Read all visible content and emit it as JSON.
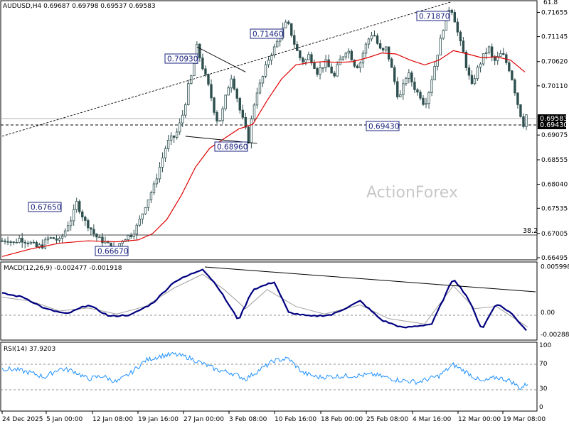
{
  "header": {
    "main": "AUDUSD,H4  0.69687 0.69798 0.69537 0.69583",
    "macd": "MACD(12,26,9) -0.002477 -0.001918",
    "rsi": "RSI(14) 37.9203",
    "top_right": "61.8"
  },
  "watermark": "ActionForex",
  "colors": {
    "candle": "#2f4f4f",
    "ma": "#e00000",
    "macd_line": "#000080",
    "macd_signal": "#a0a0a0",
    "rsi": "#1e90ff",
    "trend": "#000000",
    "box_border": "#1a237e"
  },
  "chart_data": [
    {
      "type": "candlestick",
      "symbol": "AUDUSD",
      "timeframe": "H4",
      "ylim": [
        0.6645,
        0.719
      ],
      "y_ticks": [
        "0.71655",
        "0.71145",
        "0.70620",
        "0.70110",
        "0.69583",
        "0.69430",
        "0.69075",
        "0.68555",
        "0.68040",
        "0.67535",
        "0.67005",
        "0.66495"
      ],
      "x_ticks": [
        "24 Dec 2025",
        "5 Jan 00:00",
        "12 Jan 08:00",
        "19 Jan 16:00",
        "27 Jan 00:00",
        "3 Feb 08:00",
        "10 Feb 16:00",
        "18 Feb 00:00",
        "25 Feb 08:00",
        "4 Mar 16:00",
        "12 Mar 00:00",
        "19 Mar 08:00"
      ],
      "last_price": 0.69583,
      "last_price_label": "0.69583",
      "support_level": 0.6943,
      "support_label": "0.69430",
      "fib_level": 0.67005,
      "fib_label": "38.2",
      "annotations": [
        {
          "text": "0.71870",
          "x": "9 Mar",
          "value": 0.7187
        },
        {
          "text": "0.71460",
          "x": "10 Feb",
          "value": 0.7146
        },
        {
          "text": "0.70930",
          "x": "28 Jan",
          "value": 0.7093
        },
        {
          "text": "0.68960",
          "x": "2 Feb",
          "value": 0.6896
        },
        {
          "text": "0.67650",
          "x": "8 Jan",
          "value": 0.6765
        },
        {
          "text": "0.66670",
          "x": "20 Jan",
          "value": 0.6667
        },
        {
          "text": "0.69430",
          "x": "3 Mar",
          "value": 0.6943
        }
      ],
      "close_path": [
        [
          0,
          0.6685
        ],
        [
          4,
          0.6688
        ],
        [
          8,
          0.668
        ],
        [
          12,
          0.669
        ],
        [
          16,
          0.6685
        ],
        [
          20,
          0.668
        ],
        [
          24,
          0.6672
        ],
        [
          28,
          0.6675
        ],
        [
          32,
          0.669
        ],
        [
          36,
          0.669
        ],
        [
          40,
          0.6685
        ],
        [
          43,
          0.67
        ],
        [
          46,
          0.672
        ],
        [
          49,
          0.6735
        ],
        [
          52,
          0.6765
        ],
        [
          55,
          0.6745
        ],
        [
          58,
          0.6725
        ],
        [
          61,
          0.6715
        ],
        [
          64,
          0.67
        ],
        [
          67,
          0.669
        ],
        [
          70,
          0.6685
        ],
        [
          73,
          0.668
        ],
        [
          76,
          0.667
        ],
        [
          79,
          0.6667
        ],
        [
          82,
          0.668
        ],
        [
          85,
          0.669
        ],
        [
          88,
          0.6695
        ],
        [
          91,
          0.67
        ],
        [
          94,
          0.6715
        ],
        [
          97,
          0.6735
        ],
        [
          100,
          0.676
        ],
        [
          103,
          0.678
        ],
        [
          106,
          0.68
        ],
        [
          109,
          0.683
        ],
        [
          112,
          0.686
        ],
        [
          115,
          0.689
        ],
        [
          118,
          0.69
        ],
        [
          121,
          0.6905
        ],
        [
          124,
          0.693
        ],
        [
          127,
          0.696
        ],
        [
          130,
          0.701
        ],
        [
          133,
          0.704
        ],
        [
          136,
          0.7093
        ],
        [
          139,
          0.706
        ],
        [
          142,
          0.703
        ],
        [
          145,
          0.7
        ],
        [
          148,
          0.696
        ],
        [
          151,
          0.693
        ],
        [
          154,
          0.696
        ],
        [
          157,
          0.7
        ],
        [
          160,
          0.703
        ],
        [
          163,
          0.7
        ],
        [
          166,
          0.696
        ],
        [
          169,
          0.693
        ],
        [
          172,
          0.6896
        ],
        [
          175,
          0.696
        ],
        [
          178,
          0.7
        ],
        [
          181,
          0.702
        ],
        [
          184,
          0.705
        ],
        [
          187,
          0.7075
        ],
        [
          190,
          0.709
        ],
        [
          193,
          0.711
        ],
        [
          196,
          0.713
        ],
        [
          199,
          0.7146
        ],
        [
          202,
          0.712
        ],
        [
          205,
          0.709
        ],
        [
          208,
          0.707
        ],
        [
          211,
          0.706
        ],
        [
          214,
          0.7075
        ],
        [
          217,
          0.706
        ],
        [
          220,
          0.704
        ],
        [
          223,
          0.705
        ],
        [
          226,
          0.706
        ],
        [
          229,
          0.7045
        ],
        [
          232,
          0.703
        ],
        [
          235,
          0.706
        ],
        [
          238,
          0.7075
        ],
        [
          241,
          0.709
        ],
        [
          244,
          0.707
        ],
        [
          247,
          0.705
        ],
        [
          250,
          0.706
        ],
        [
          253,
          0.709
        ],
        [
          256,
          0.711
        ],
        [
          259,
          0.7125
        ],
        [
          262,
          0.71
        ],
        [
          265,
          0.708
        ],
        [
          268,
          0.709
        ],
        [
          271,
          0.706
        ],
        [
          274,
          0.702
        ],
        [
          277,
          0.698
        ],
        [
          280,
          0.701
        ],
        [
          283,
          0.704
        ],
        [
          286,
          0.702
        ],
        [
          289,
          0.7
        ],
        [
          292,
          0.699
        ],
        [
          295,
          0.697
        ],
        [
          298,
          0.7
        ],
        [
          301,
          0.704
        ],
        [
          304,
          0.708
        ],
        [
          307,
          0.712
        ],
        [
          310,
          0.716
        ],
        [
          313,
          0.718
        ],
        [
          316,
          0.715
        ],
        [
          319,
          0.711
        ],
        [
          322,
          0.708
        ],
        [
          325,
          0.704
        ],
        [
          328,
          0.701
        ],
        [
          331,
          0.704
        ],
        [
          334,
          0.706
        ],
        [
          337,
          0.708
        ],
        [
          340,
          0.709
        ],
        [
          343,
          0.706
        ],
        [
          346,
          0.707
        ],
        [
          349,
          0.708
        ],
        [
          352,
          0.706
        ],
        [
          355,
          0.704
        ],
        [
          358,
          0.7
        ],
        [
          361,
          0.696
        ],
        [
          364,
          0.693
        ],
        [
          367,
          0.696
        ]
      ],
      "ma_path": [
        [
          0,
          0.6652
        ],
        [
          20,
          0.6668
        ],
        [
          40,
          0.668
        ],
        [
          60,
          0.6685
        ],
        [
          80,
          0.6683
        ],
        [
          95,
          0.6687
        ],
        [
          105,
          0.67
        ],
        [
          115,
          0.673
        ],
        [
          125,
          0.678
        ],
        [
          135,
          0.684
        ],
        [
          145,
          0.688
        ],
        [
          155,
          0.69
        ],
        [
          165,
          0.692
        ],
        [
          175,
          0.693
        ],
        [
          185,
          0.698
        ],
        [
          195,
          0.7025
        ],
        [
          205,
          0.7055
        ],
        [
          215,
          0.706
        ],
        [
          225,
          0.7062
        ],
        [
          235,
          0.706
        ],
        [
          245,
          0.7062
        ],
        [
          255,
          0.707
        ],
        [
          265,
          0.708
        ],
        [
          275,
          0.7078
        ],
        [
          285,
          0.7065
        ],
        [
          295,
          0.7055
        ],
        [
          305,
          0.7065
        ],
        [
          315,
          0.7085
        ],
        [
          325,
          0.7078
        ],
        [
          335,
          0.707
        ],
        [
          345,
          0.7072
        ],
        [
          355,
          0.7065
        ],
        [
          365,
          0.704
        ]
      ],
      "trendlines": [
        {
          "from": [
            "24 Dec 2025",
            0.6905
          ],
          "to": [
            "9 Mar",
            0.7187
          ],
          "style": "dashed"
        },
        {
          "from": [
            "28 Jan",
            0.7093
          ],
          "to": [
            "3 Feb",
            0.704
          ],
          "style": "solid"
        },
        {
          "from": [
            "27 Jan",
            0.6905
          ],
          "to": [
            "4 Feb",
            0.689
          ],
          "style": "solid"
        }
      ]
    },
    {
      "type": "line",
      "indicator": "MACD(12,26,9)",
      "macd": -0.002477,
      "signal": -0.001918,
      "ylim": [
        -0.0036,
        0.0066
      ],
      "y_ticks": [
        "0.005998",
        "0.00",
        "-0.002881"
      ],
      "macd_path": [
        [
          0,
          0.0025
        ],
        [
          15,
          0.002
        ],
        [
          30,
          0.0005
        ],
        [
          45,
          -0.0002
        ],
        [
          60,
          0.001
        ],
        [
          75,
          -0.0005
        ],
        [
          90,
          -0.0003
        ],
        [
          105,
          0.0012
        ],
        [
          120,
          0.004
        ],
        [
          140,
          0.0057
        ],
        [
          150,
          0.0035
        ],
        [
          165,
          -0.001
        ],
        [
          175,
          0.003
        ],
        [
          190,
          0.004
        ],
        [
          200,
          0.0
        ],
        [
          215,
          -0.0005
        ],
        [
          230,
          -0.0003
        ],
        [
          250,
          0.0015
        ],
        [
          265,
          -0.001
        ],
        [
          280,
          -0.002
        ],
        [
          300,
          -0.0015
        ],
        [
          315,
          0.0045
        ],
        [
          325,
          0.002
        ],
        [
          335,
          -0.0022
        ],
        [
          345,
          0.0012
        ],
        [
          355,
          0.0
        ],
        [
          367,
          -0.0025
        ]
      ],
      "signal_path": [
        [
          0,
          0.002
        ],
        [
          20,
          0.0015
        ],
        [
          40,
          0.0002
        ],
        [
          60,
          0.0006
        ],
        [
          80,
          -0.0002
        ],
        [
          100,
          0.0008
        ],
        [
          120,
          0.0032
        ],
        [
          140,
          0.005
        ],
        [
          155,
          0.003
        ],
        [
          170,
          0.0005
        ],
        [
          185,
          0.003
        ],
        [
          205,
          0.0008
        ],
        [
          225,
          -0.0002
        ],
        [
          250,
          0.001
        ],
        [
          270,
          -0.0008
        ],
        [
          295,
          -0.0015
        ],
        [
          315,
          0.0035
        ],
        [
          330,
          0.0005
        ],
        [
          345,
          0.0008
        ],
        [
          367,
          -0.0019
        ]
      ]
    },
    {
      "type": "line",
      "indicator": "RSI(14)",
      "value": 37.9203,
      "ylim": [
        0,
        100
      ],
      "y_ticks": [
        "100",
        "70",
        "30",
        "0"
      ],
      "rsi_path": [
        [
          0,
          62
        ],
        [
          10,
          60
        ],
        [
          20,
          55
        ],
        [
          30,
          48
        ],
        [
          40,
          62
        ],
        [
          50,
          58
        ],
        [
          60,
          45
        ],
        [
          70,
          50
        ],
        [
          80,
          40
        ],
        [
          90,
          55
        ],
        [
          100,
          75
        ],
        [
          110,
          82
        ],
        [
          120,
          85
        ],
        [
          130,
          80
        ],
        [
          140,
          70
        ],
        [
          150,
          60
        ],
        [
          160,
          55
        ],
        [
          170,
          45
        ],
        [
          180,
          60
        ],
        [
          190,
          75
        ],
        [
          200,
          78
        ],
        [
          210,
          55
        ],
        [
          220,
          48
        ],
        [
          240,
          50
        ],
        [
          260,
          52
        ],
        [
          275,
          44
        ],
        [
          290,
          40
        ],
        [
          305,
          50
        ],
        [
          315,
          68
        ],
        [
          325,
          55
        ],
        [
          335,
          40
        ],
        [
          345,
          48
        ],
        [
          355,
          42
        ],
        [
          362,
          30
        ],
        [
          367,
          38
        ]
      ]
    }
  ]
}
